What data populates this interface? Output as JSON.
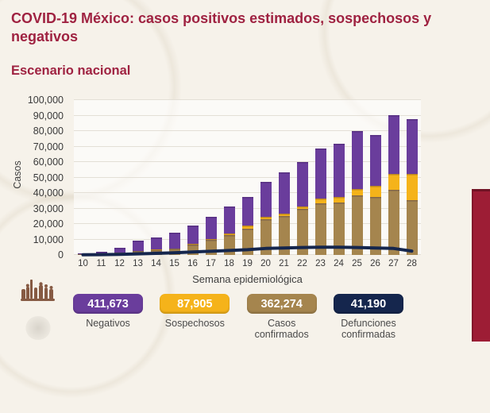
{
  "header": {
    "title": "COVID-19 México: casos positivos estimados, sospechosos y negativos",
    "subtitle": "Escenario nacional"
  },
  "colors": {
    "accent_maroon": "#9f2241",
    "negativos_purple": "#6a3d9c",
    "sospechosos_yellow": "#f5b31a",
    "confirmados_brown": "#a5854e",
    "defunciones_navy": "#15264d",
    "red_sidebar": "#9d1d35",
    "background_cream": "#f6f2ea"
  },
  "chart_data": {
    "type": "bar",
    "stacked": true,
    "xlabel": "Semana epidemiológica",
    "ylabel": "Casos",
    "ylim": [
      0,
      100000
    ],
    "ytick_step": 10000,
    "grid": true,
    "legend_position": "none",
    "categories": [
      10,
      11,
      12,
      13,
      14,
      15,
      16,
      17,
      18,
      19,
      20,
      21,
      22,
      23,
      24,
      25,
      26,
      27,
      28
    ],
    "series": [
      {
        "name": "Casos confirmados",
        "color_key": "confirmados_brown",
        "values": [
          300,
          800,
          1600,
          2500,
          3200,
          3900,
          6500,
          9800,
          12800,
          17000,
          23000,
          25200,
          29500,
          33500,
          34100,
          38600,
          37700,
          42000,
          35200
        ]
      },
      {
        "name": "Sospechosos",
        "color_key": "sospechosos_yellow",
        "values": [
          0,
          0,
          100,
          200,
          300,
          400,
          500,
          700,
          900,
          2100,
          1800,
          1400,
          1800,
          2900,
          3100,
          4200,
          6800,
          10200,
          17000
        ]
      },
      {
        "name": "Negativos",
        "color_key": "negativos_purple",
        "values": [
          500,
          1200,
          3100,
          6400,
          7800,
          9900,
          11800,
          14200,
          17500,
          18600,
          22600,
          26800,
          28600,
          32400,
          34500,
          37100,
          32800,
          38300,
          35300
        ]
      }
    ],
    "line_series": {
      "name": "Defunciones confirmadas",
      "color_key": "defunciones_navy",
      "values": [
        100,
        200,
        400,
        700,
        1000,
        1400,
        1900,
        2400,
        2900,
        3400,
        4200,
        4500,
        4800,
        5000,
        5000,
        4800,
        4500,
        4200,
        2500
      ]
    }
  },
  "summary_badges": [
    {
      "value": "411,673",
      "label": "Negativos",
      "color_key": "negativos_purple"
    },
    {
      "value": "87,905",
      "label": "Sospechosos",
      "color_key": "sospechosos_yellow"
    },
    {
      "value": "362,274",
      "label": "Casos confirmados",
      "color_key": "confirmados_brown"
    },
    {
      "value": "41,190",
      "label": "Defunciones confirmadas",
      "color_key": "defunciones_navy"
    }
  ]
}
